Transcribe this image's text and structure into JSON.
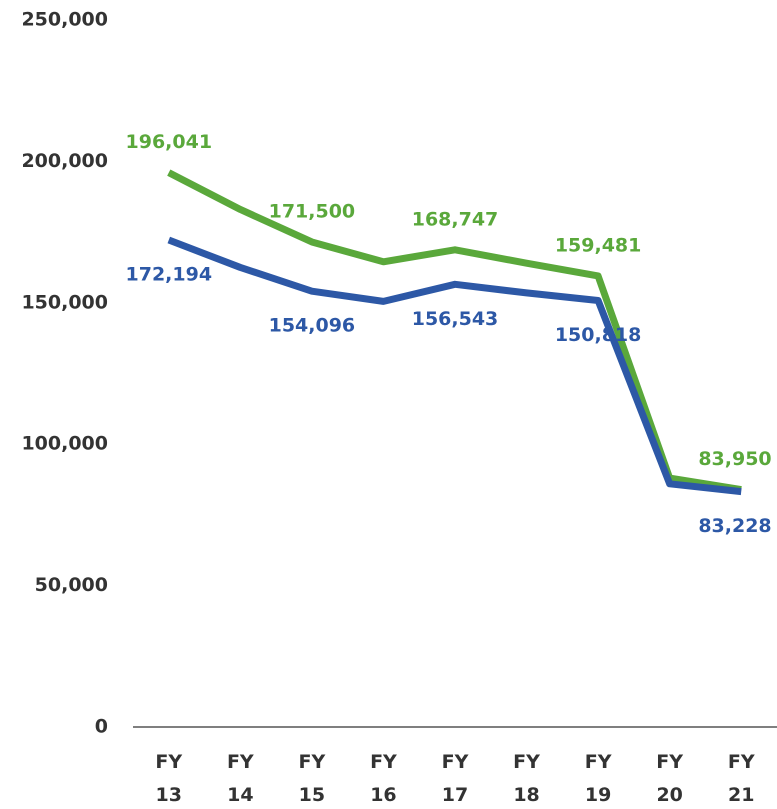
{
  "chart_data": {
    "type": "line",
    "categories": [
      "FY 13",
      "FY 14",
      "FY 15",
      "FY 16",
      "FY 17",
      "FY 18",
      "FY 19",
      "FY 20",
      "FY 21"
    ],
    "series": [
      {
        "color": "#5aa83b",
        "values": [
          196041,
          183000,
          171500,
          164500,
          168747,
          164000,
          159481,
          88000,
          83950
        ],
        "value_labels": [
          "196,041",
          null,
          "171,500",
          null,
          "168,747",
          null,
          "159,481",
          null,
          "83,950"
        ]
      },
      {
        "color": "#2d58a6",
        "values": [
          172194,
          162500,
          154096,
          150500,
          156543,
          153500,
          150818,
          86000,
          83228
        ],
        "value_labels": [
          "172,194",
          null,
          "154,096",
          null,
          "156,543",
          null,
          "150,818",
          null,
          "83,228"
        ]
      }
    ],
    "ylim": [
      0,
      250000
    ],
    "yticks": [
      0,
      {
        "value": 50000,
        "label": "50,000"
      },
      {
        "value": 100000,
        "label": "100,000"
      },
      {
        "value": 150000,
        "label": "150,000"
      },
      {
        "value": 200000,
        "label": "200,000"
      },
      {
        "value": 250000,
        "label": "250,000"
      }
    ]
  }
}
